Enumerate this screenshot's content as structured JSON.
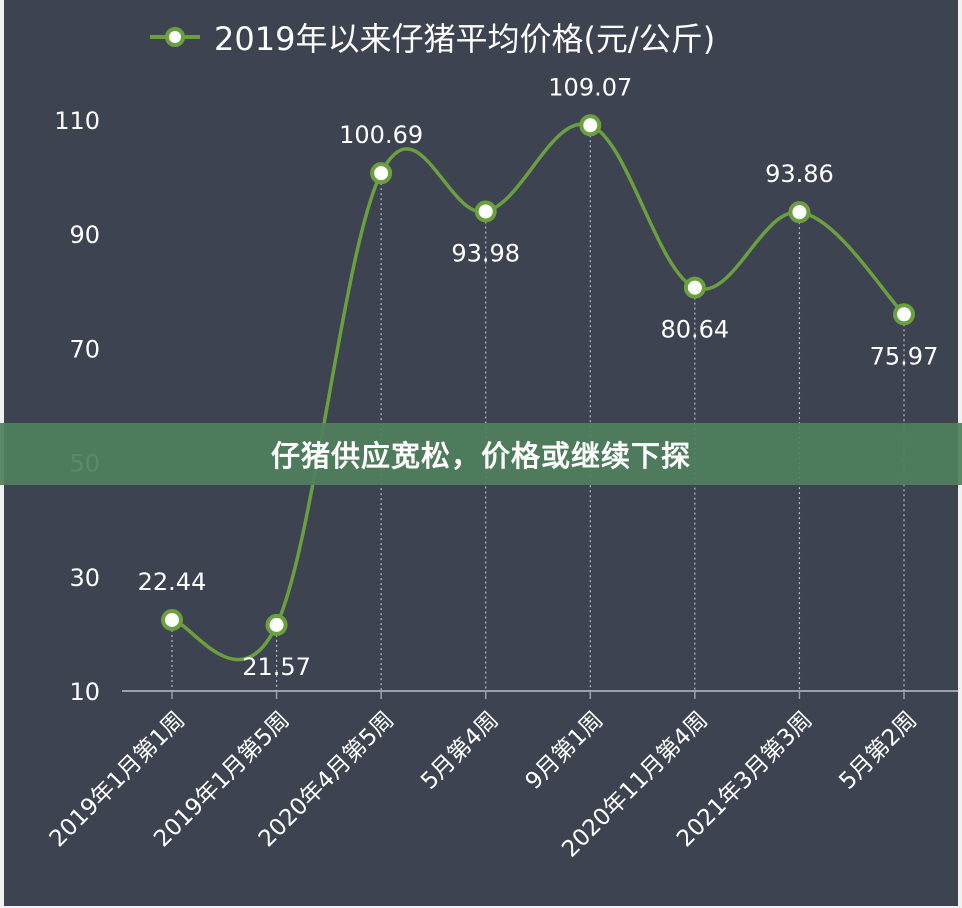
{
  "colors": {
    "background": "#3d4350",
    "line": "#6aa03f",
    "text": "#ffffff",
    "banner": "#4e805c",
    "grid": "#9aa0aa"
  },
  "banner": {
    "text": "仔猪供应宽松，价格或继续下探"
  },
  "chart_data": {
    "type": "line",
    "title": "2019年以来仔猪平均价格(元/公斤)",
    "legend": {
      "show": true,
      "position": "top",
      "label": "2019年以来仔猪平均价格(元/公斤)"
    },
    "categories": [
      "2019年1月第1周",
      "2019年1月第5周",
      "2020年4月第5周",
      "5月第4周",
      "9月第1周",
      "2020年11月第4周",
      "2021年3月第3周",
      "5月第2周"
    ],
    "series": [
      {
        "name": "2019年以来仔猪平均价格(元/公斤)",
        "values": [
          22.44,
          21.57,
          100.69,
          93.98,
          109.07,
          80.64,
          93.86,
          75.97
        ]
      }
    ],
    "data_labels": [
      "22.44",
      "21.57",
      "100.69",
      "93.98",
      "109.07",
      "80.64",
      "93.86",
      "75.97"
    ],
    "yticks": [
      "10",
      "30",
      "50",
      "70",
      "90",
      "110"
    ],
    "ylim": [
      10,
      110
    ],
    "smooth": true,
    "grid": false,
    "xlabel": "",
    "ylabel": ""
  }
}
